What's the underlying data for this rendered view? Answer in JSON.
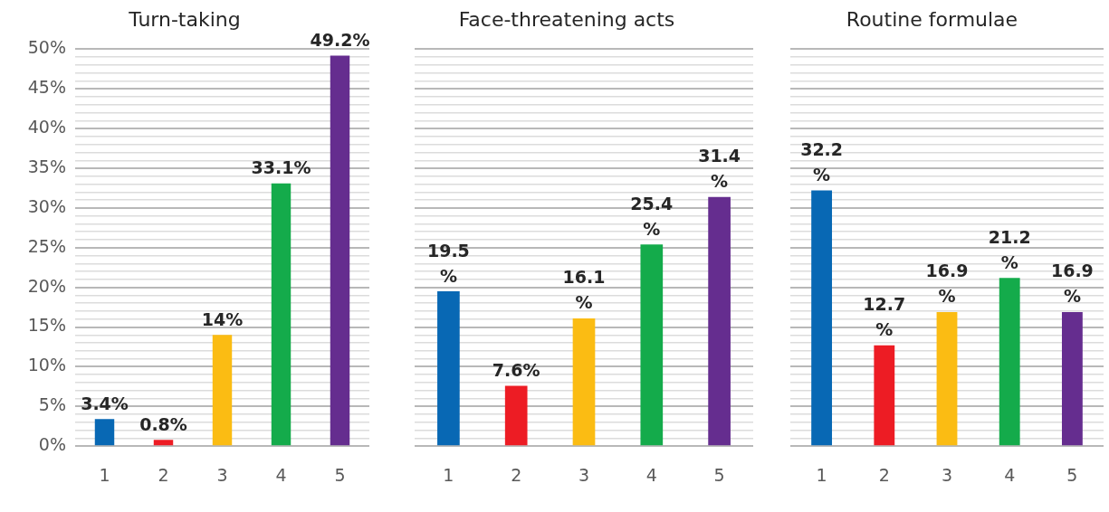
{
  "chart_data": [
    {
      "type": "bar",
      "title": "Turn-taking",
      "categories": [
        "1",
        "2",
        "3",
        "4",
        "5"
      ],
      "values": [
        3.4,
        0.8,
        14,
        33.1,
        49.2
      ],
      "colors": [
        "#0868b4",
        "#ed1c24",
        "#fbbc13",
        "#14ab4b",
        "#652d8f"
      ],
      "value_labels": [
        "3.4%",
        "0.8%",
        "14%",
        "33.1%",
        "49.2%"
      ],
      "ylim": [
        0,
        50
      ],
      "yticks": [
        {
          "value": 0,
          "label": "0%"
        },
        {
          "value": 1,
          "label": null
        },
        {
          "value": 2,
          "label": null
        },
        {
          "value": 3,
          "label": null
        },
        {
          "value": 4,
          "label": null
        },
        {
          "value": 5,
          "label": "5%"
        },
        {
          "value": 6,
          "label": null
        },
        {
          "value": 7,
          "label": null
        },
        {
          "value": 8,
          "label": null
        },
        {
          "value": 9,
          "label": null
        },
        {
          "value": 10,
          "label": "10%"
        },
        {
          "value": 11,
          "label": null
        },
        {
          "value": 12,
          "label": null
        },
        {
          "value": 13,
          "label": null
        },
        {
          "value": 14,
          "label": null
        },
        {
          "value": 15,
          "label": "15%"
        },
        {
          "value": 16,
          "label": null
        },
        {
          "value": 17,
          "label": null
        },
        {
          "value": 18,
          "label": null
        },
        {
          "value": 19,
          "label": null
        },
        {
          "value": 20,
          "label": "20%"
        },
        {
          "value": 21,
          "label": null
        },
        {
          "value": 22,
          "label": null
        },
        {
          "value": 23,
          "label": null
        },
        {
          "value": 24,
          "label": null
        },
        {
          "value": 25,
          "label": "25%"
        },
        {
          "value": 26,
          "label": null
        },
        {
          "value": 27,
          "label": null
        },
        {
          "value": 28,
          "label": null
        },
        {
          "value": 29,
          "label": null
        },
        {
          "value": 30,
          "label": "30%"
        },
        {
          "value": 31,
          "label": null
        },
        {
          "value": 32,
          "label": null
        },
        {
          "value": 33,
          "label": null
        },
        {
          "value": 34,
          "label": null
        },
        {
          "value": 35,
          "label": "35%"
        },
        {
          "value": 36,
          "label": null
        },
        {
          "value": 37,
          "label": null
        },
        {
          "value": 38,
          "label": null
        },
        {
          "value": 39,
          "label": null
        },
        {
          "value": 40,
          "label": "40%"
        },
        {
          "value": 41,
          "label": null
        },
        {
          "value": 42,
          "label": null
        },
        {
          "value": 43,
          "label": null
        },
        {
          "value": 44,
          "label": null
        },
        {
          "value": 45,
          "label": "45%"
        },
        {
          "value": 46,
          "label": null
        },
        {
          "value": 47,
          "label": null
        },
        {
          "value": 48,
          "label": null
        },
        {
          "value": 49,
          "label": null
        },
        {
          "value": 50,
          "label": "50%"
        }
      ],
      "grid": "y"
    },
    {
      "type": "bar",
      "title": "Face-threatening acts",
      "categories": [
        "1",
        "2",
        "3",
        "4",
        "5"
      ],
      "values": [
        19.5,
        7.6,
        16.1,
        25.4,
        31.4
      ],
      "colors": [
        "#0868b4",
        "#ed1c24",
        "#fbbc13",
        "#14ab4b",
        "#652d8f"
      ],
      "value_labels": [
        "19.5\n%",
        "7.6%",
        "16.1\n%",
        "25.4\n%",
        "31.4\n%"
      ],
      "ylim": [
        0,
        50
      ],
      "yticks": [
        0,
        {
          "value": 1,
          "label": null
        },
        {
          "value": 2,
          "label": null
        },
        {
          "value": 3,
          "label": null
        },
        {
          "value": 4,
          "label": null
        },
        5,
        {
          "value": 6,
          "label": null
        },
        {
          "value": 7,
          "label": null
        },
        {
          "value": 8,
          "label": null
        },
        {
          "value": 9,
          "label": null
        },
        10,
        {
          "value": 11,
          "label": null
        },
        {
          "value": 12,
          "label": null
        },
        {
          "value": 13,
          "label": null
        },
        {
          "value": 14,
          "label": null
        },
        15,
        {
          "value": 16,
          "label": null
        },
        {
          "value": 17,
          "label": null
        },
        {
          "value": 18,
          "label": null
        },
        {
          "value": 19,
          "label": null
        },
        20,
        {
          "value": 21,
          "label": null
        },
        {
          "value": 22,
          "label": null
        },
        {
          "value": 23,
          "label": null
        },
        {
          "value": 24,
          "label": null
        },
        25,
        {
          "value": 26,
          "label": null
        },
        {
          "value": 27,
          "label": null
        },
        {
          "value": 28,
          "label": null
        },
        {
          "value": 29,
          "label": null
        },
        30,
        {
          "value": 31,
          "label": null
        },
        {
          "value": 32,
          "label": null
        },
        {
          "value": 33,
          "label": null
        },
        {
          "value": 34,
          "label": null
        },
        35,
        {
          "value": 36,
          "label": null
        },
        {
          "value": 37,
          "label": null
        },
        {
          "value": 38,
          "label": null
        },
        {
          "value": 39,
          "label": null
        },
        40,
        {
          "value": 41,
          "label": null
        },
        {
          "value": 42,
          "label": null
        },
        {
          "value": 43,
          "label": null
        },
        {
          "value": 44,
          "label": null
        },
        45,
        {
          "value": 46,
          "label": null
        },
        {
          "value": 47,
          "label": null
        },
        {
          "value": 48,
          "label": null
        },
        {
          "value": 49,
          "label": null
        },
        50
      ],
      "grid": "y",
      "tick_labels": "x"
    },
    {
      "type": "bar",
      "title": "Routine formulae",
      "categories": [
        "1",
        "2",
        "3",
        "4",
        "5"
      ],
      "values": [
        32.2,
        12.7,
        16.9,
        21.2,
        16.9
      ],
      "colors": [
        "#0868b4",
        "#ed1c24",
        "#fbbc13",
        "#14ab4b",
        "#652d8f"
      ],
      "value_labels": [
        "32.2\n%",
        "12.7\n%",
        "16.9\n%",
        "21.2\n%",
        "16.9\n%"
      ],
      "ylim": [
        0,
        50
      ],
      "yticks": [
        0,
        {
          "value": 1,
          "label": null
        },
        {
          "value": 2,
          "label": null
        },
        {
          "value": 3,
          "label": null
        },
        {
          "value": 4,
          "label": null
        },
        5,
        {
          "value": 6,
          "label": null
        },
        {
          "value": 7,
          "label": null
        },
        {
          "value": 8,
          "label": null
        },
        {
          "value": 9,
          "label": null
        },
        10,
        {
          "value": 11,
          "label": null
        },
        {
          "value": 12,
          "label": null
        },
        {
          "value": 13,
          "label": null
        },
        {
          "value": 14,
          "label": null
        },
        15,
        {
          "value": 16,
          "label": null
        },
        {
          "value": 17,
          "label": null
        },
        {
          "value": 18,
          "label": null
        },
        {
          "value": 19,
          "label": null
        },
        20,
        {
          "value": 21,
          "label": null
        },
        {
          "value": 22,
          "label": null
        },
        {
          "value": 23,
          "label": null
        },
        {
          "value": 24,
          "label": null
        },
        25,
        {
          "value": 26,
          "label": null
        },
        {
          "value": 27,
          "label": null
        },
        {
          "value": 28,
          "label": null
        },
        {
          "value": 29,
          "label": null
        },
        30,
        {
          "value": 31,
          "label": null
        },
        {
          "value": 32,
          "label": null
        },
        {
          "value": 33,
          "label": null
        },
        {
          "value": 34,
          "label": null
        },
        35,
        {
          "value": 36,
          "label": null
        },
        {
          "value": 37,
          "label": null
        },
        {
          "value": 38,
          "label": null
        },
        {
          "value": 39,
          "label": null
        },
        40,
        {
          "value": 41,
          "label": null
        },
        {
          "value": 42,
          "label": null
        },
        {
          "value": 43,
          "label": null
        },
        {
          "value": 44,
          "label": null
        },
        45,
        {
          "value": 46,
          "label": null
        },
        {
          "value": 47,
          "label": null
        },
        {
          "value": 48,
          "label": null
        },
        {
          "value": 49,
          "label": null
        },
        50
      ],
      "grid": "y",
      "tick_labels": "x"
    }
  ]
}
